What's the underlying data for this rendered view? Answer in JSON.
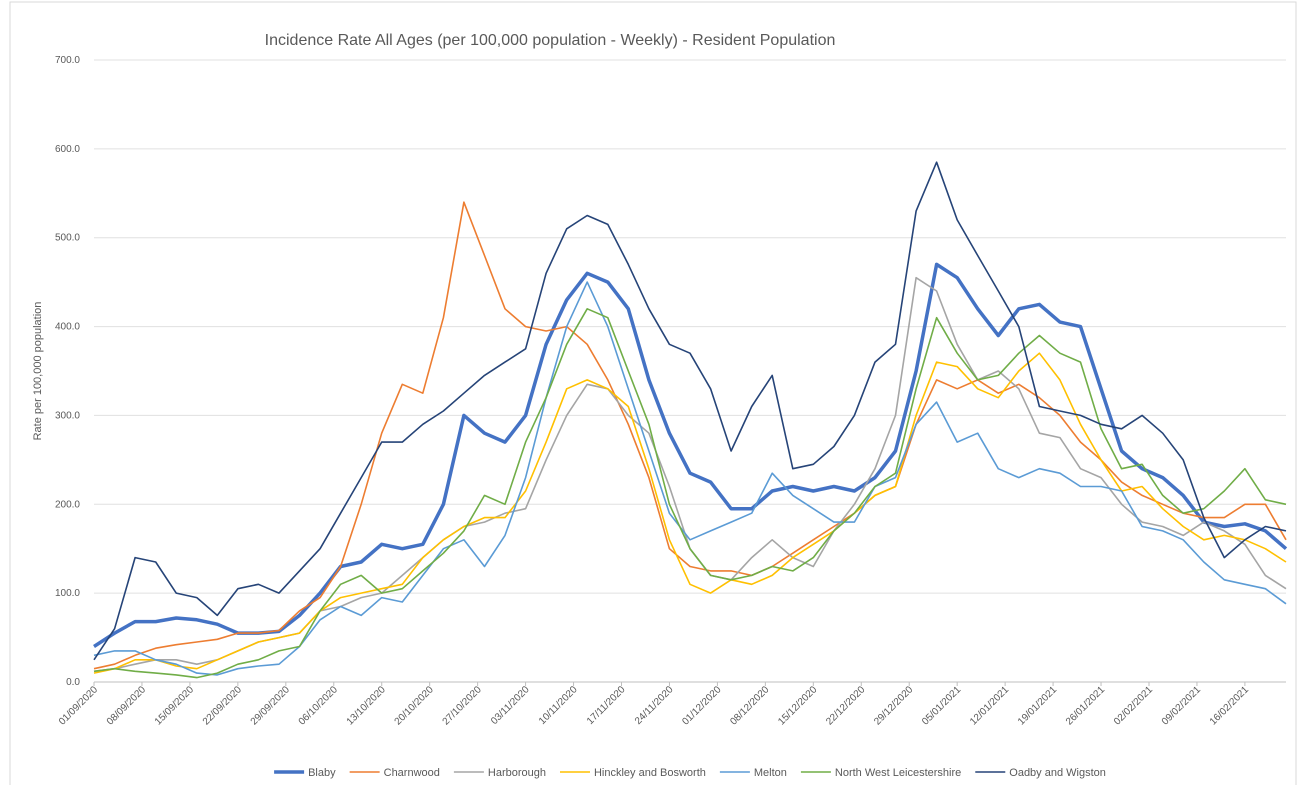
{
  "chart_data": {
    "type": "line",
    "title": "Incidence Rate All Ages (per 100,000 population - Weekly) - Resident Population",
    "y_label": "Rate per 100,000 population",
    "x": [
      "01/09/2020",
      "04/09/2020",
      "07/09/2020",
      "10/09/2020",
      "13/09/2020",
      "16/09/2020",
      "19/09/2020",
      "22/09/2020",
      "25/09/2020",
      "28/09/2020",
      "01/10/2020",
      "04/10/2020",
      "07/10/2020",
      "10/10/2020",
      "13/10/2020",
      "16/10/2020",
      "19/10/2020",
      "22/10/2020",
      "25/10/2020",
      "28/10/2020",
      "31/10/2020",
      "03/11/2020",
      "06/11/2020",
      "09/11/2020",
      "12/11/2020",
      "15/11/2020",
      "18/11/2020",
      "21/11/2020",
      "24/11/2020",
      "27/11/2020",
      "30/11/2020",
      "03/12/2020",
      "06/12/2020",
      "09/12/2020",
      "12/12/2020",
      "15/12/2020",
      "18/12/2020",
      "21/12/2020",
      "24/12/2020",
      "27/12/2020",
      "30/12/2020",
      "02/01/2021",
      "05/01/2021",
      "08/01/2021",
      "11/01/2021",
      "14/01/2021",
      "17/01/2021",
      "20/01/2021",
      "23/01/2021",
      "26/01/2021",
      "29/01/2021",
      "01/02/2021",
      "04/02/2021",
      "07/02/2021",
      "10/02/2021",
      "13/02/2021",
      "16/02/2021",
      "19/02/2021",
      "22/02/2021"
    ],
    "xlim": [
      "01/09/2020",
      "22/02/2021"
    ],
    "xticks": [
      "01/09/2020",
      "08/09/2020",
      "15/09/2020",
      "22/09/2020",
      "29/09/2020",
      "06/10/2020",
      "13/10/2020",
      "20/10/2020",
      "27/10/2020",
      "03/11/2020",
      "10/11/2020",
      "17/11/2020",
      "24/11/2020",
      "01/12/2020",
      "08/12/2020",
      "15/12/2020",
      "22/12/2020",
      "29/12/2020",
      "05/01/2021",
      "12/01/2021",
      "19/01/2021",
      "26/01/2021",
      "02/02/2021",
      "09/02/2021",
      "16/02/2021"
    ],
    "ylim": [
      0,
      700
    ],
    "yticks": [
      {
        "value": 0,
        "label": "0.0"
      },
      {
        "value": 100,
        "label": "100.0"
      },
      {
        "value": 200,
        "label": "200.0"
      },
      {
        "value": 300,
        "label": "300.0"
      },
      {
        "value": 400,
        "label": "400.0"
      },
      {
        "value": 500,
        "label": "500.0"
      },
      {
        "value": 600,
        "label": "600.0"
      },
      {
        "value": 700,
        "label": "700.0"
      }
    ],
    "grid": true,
    "legend": "bottom",
    "series": [
      {
        "name": "Blaby",
        "color": "#4472c4",
        "width": 3.5,
        "values": [
          40,
          55,
          68,
          68,
          72,
          70,
          65,
          55,
          55,
          57,
          75,
          100,
          130,
          135,
          155,
          150,
          155,
          200,
          300,
          280,
          270,
          300,
          380,
          430,
          460,
          450,
          420,
          340,
          280,
          235,
          225,
          195,
          195,
          215,
          220,
          215,
          220,
          215,
          230,
          260,
          350,
          470,
          455,
          420,
          390,
          420,
          425,
          405,
          400,
          330,
          260,
          240,
          230,
          210,
          180,
          175,
          178,
          170,
          150
        ]
      },
      {
        "name": "Charnwood",
        "color": "#ed7d31",
        "width": 1.6,
        "values": [
          15,
          20,
          30,
          38,
          42,
          45,
          48,
          55,
          55,
          58,
          80,
          95,
          130,
          200,
          280,
          335,
          325,
          410,
          540,
          480,
          420,
          400,
          395,
          400,
          380,
          340,
          290,
          230,
          150,
          130,
          125,
          125,
          120,
          130,
          145,
          160,
          175,
          190,
          210,
          220,
          290,
          340,
          330,
          340,
          325,
          335,
          320,
          300,
          270,
          250,
          225,
          210,
          200,
          190,
          185,
          185,
          200,
          200,
          160
        ]
      },
      {
        "name": "Harborough",
        "color": "#a5a5a5",
        "width": 1.6,
        "values": [
          12,
          15,
          20,
          25,
          25,
          20,
          25,
          35,
          45,
          50,
          55,
          80,
          85,
          95,
          100,
          120,
          140,
          160,
          175,
          180,
          190,
          195,
          250,
          300,
          335,
          330,
          300,
          280,
          220,
          150,
          120,
          115,
          140,
          160,
          140,
          130,
          170,
          200,
          240,
          300,
          455,
          440,
          380,
          340,
          350,
          330,
          280,
          275,
          240,
          230,
          200,
          180,
          175,
          165,
          180,
          170,
          155,
          120,
          105
        ]
      },
      {
        "name": "Hinckley and Bosworth",
        "color": "#ffc000",
        "width": 1.6,
        "values": [
          10,
          15,
          25,
          25,
          18,
          15,
          25,
          35,
          45,
          50,
          55,
          80,
          95,
          100,
          105,
          110,
          140,
          160,
          175,
          185,
          185,
          215,
          270,
          330,
          340,
          330,
          310,
          240,
          160,
          110,
          100,
          115,
          110,
          120,
          140,
          155,
          170,
          190,
          210,
          220,
          300,
          360,
          355,
          330,
          320,
          350,
          370,
          340,
          290,
          250,
          215,
          220,
          195,
          175,
          160,
          165,
          160,
          150,
          135
        ]
      },
      {
        "name": "Melton",
        "color": "#5b9bd5",
        "width": 1.6,
        "values": [
          30,
          35,
          35,
          25,
          20,
          10,
          8,
          15,
          18,
          20,
          40,
          70,
          85,
          75,
          95,
          90,
          120,
          150,
          160,
          130,
          165,
          230,
          320,
          400,
          450,
          400,
          330,
          260,
          190,
          160,
          170,
          180,
          190,
          235,
          210,
          195,
          180,
          180,
          220,
          230,
          290,
          315,
          270,
          280,
          240,
          230,
          240,
          235,
          220,
          220,
          215,
          175,
          170,
          160,
          135,
          115,
          110,
          105,
          88
        ]
      },
      {
        "name": "North West Leicestershire",
        "color": "#70ad47",
        "width": 1.6,
        "values": [
          12,
          15,
          12,
          10,
          8,
          5,
          10,
          20,
          25,
          35,
          40,
          80,
          110,
          120,
          100,
          105,
          125,
          145,
          170,
          210,
          200,
          270,
          320,
          380,
          420,
          410,
          350,
          290,
          200,
          150,
          120,
          115,
          120,
          130,
          125,
          140,
          170,
          190,
          220,
          235,
          330,
          410,
          370,
          340,
          345,
          370,
          390,
          370,
          360,
          285,
          240,
          245,
          210,
          190,
          195,
          215,
          240,
          205,
          200
        ]
      },
      {
        "name": "Oadby and Wigston",
        "color": "#264478",
        "width": 1.6,
        "values": [
          25,
          60,
          140,
          135,
          100,
          95,
          75,
          105,
          110,
          100,
          125,
          150,
          190,
          230,
          270,
          270,
          290,
          305,
          325,
          345,
          360,
          375,
          460,
          510,
          525,
          515,
          470,
          420,
          380,
          370,
          330,
          260,
          310,
          345,
          240,
          245,
          265,
          300,
          360,
          380,
          530,
          585,
          520,
          480,
          440,
          400,
          310,
          305,
          300,
          290,
          285,
          300,
          280,
          250,
          185,
          140,
          160,
          175,
          170
        ]
      }
    ]
  }
}
